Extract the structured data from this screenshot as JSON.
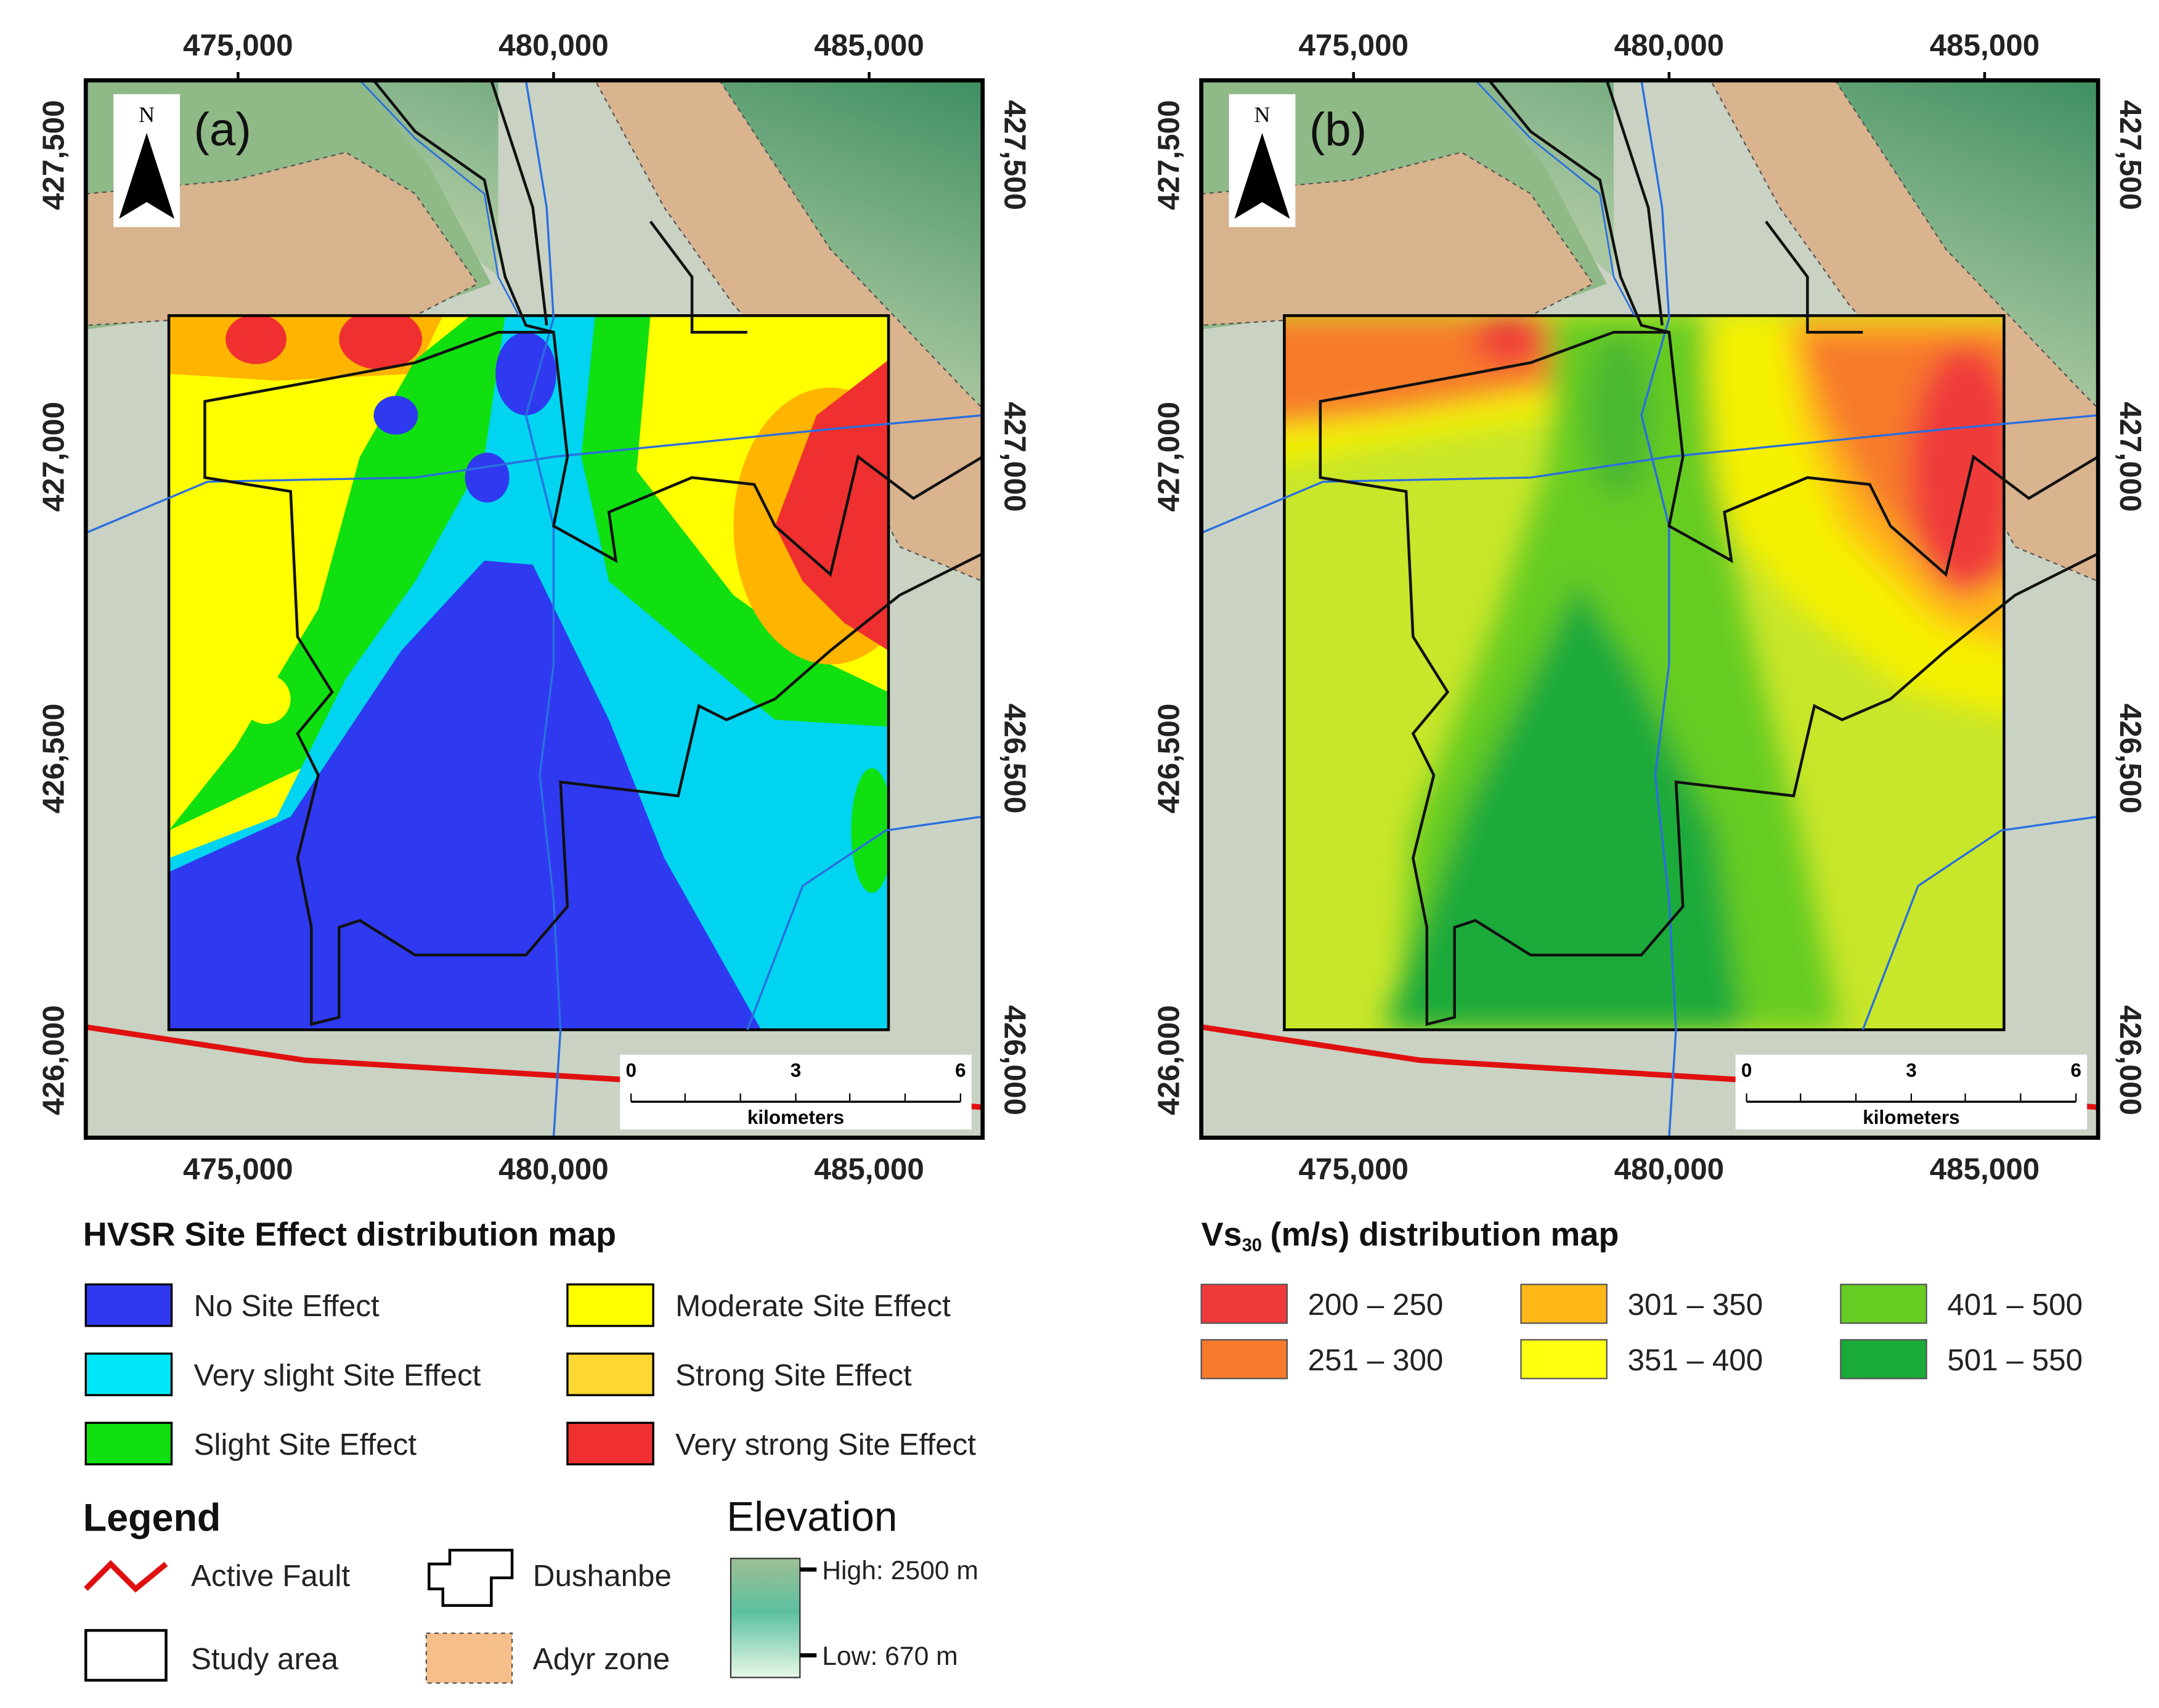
{
  "panels": [
    {
      "label": "(a)",
      "north": "N",
      "x_ticks": [
        "475,000",
        "480,000",
        "485,000"
      ],
      "y_ticks": [
        "427,500",
        "427,000",
        "426,500",
        "426,000"
      ],
      "scale": {
        "ticks": [
          "0",
          "3",
          "6"
        ],
        "unit": "kilometers"
      }
    },
    {
      "label": "(b)",
      "north": "N",
      "x_ticks": [
        "475,000",
        "480,000",
        "485,000"
      ],
      "y_ticks": [
        "427,500",
        "427,000",
        "426,500",
        "426,000"
      ],
      "scale": {
        "ticks": [
          "0",
          "3",
          "6"
        ],
        "unit": "kilometers"
      }
    }
  ],
  "legend_a": {
    "title": "HVSR Site Effect distribution map",
    "items": [
      "No Site Effect",
      "Very slight Site Effect",
      "Slight Site Effect",
      "Moderate Site Effect",
      "Strong Site Effect",
      "Very strong Site Effect"
    ]
  },
  "legend_b": {
    "title": [
      "Vs",
      "30",
      "(m/s) distribution map"
    ],
    "items": [
      "200 – 250",
      "251 – 300",
      "301 – 350",
      "351 – 400",
      "401 – 500",
      "501 – 550"
    ]
  },
  "legend": {
    "title": "Legend",
    "items": [
      "Active Fault",
      "Study area",
      "Dushanbe",
      "Adyr zone"
    ]
  },
  "elevation": {
    "title": "Elevation",
    "high": "High: 2500 m",
    "low": "Low: 670 m"
  }
}
